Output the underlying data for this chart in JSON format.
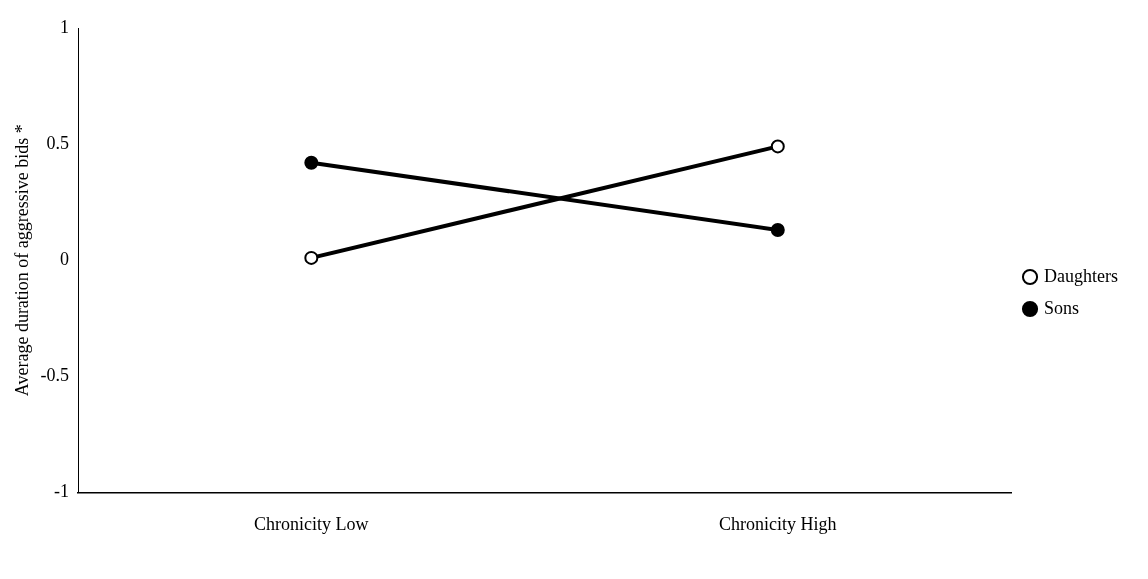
{
  "chart_data": {
    "type": "line",
    "ylabel": "Average duration of aggressive bids *",
    "categories": [
      "Chronicity Low",
      "Chronicity High"
    ],
    "series": [
      {
        "name": "Daughters",
        "color": "#000000",
        "values": [
          0.01,
          0.49
        ],
        "marker": "circle"
      },
      {
        "name": "Sons",
        "color": "#000000",
        "values": [
          0.42,
          0.13
        ],
        "marker": "circle"
      }
    ],
    "ylim": [
      -1,
      1
    ],
    "yticks": [
      -1,
      -0.5,
      0,
      0.5,
      1
    ],
    "grid": false,
    "legend": "right",
    "line_style": "solid"
  }
}
